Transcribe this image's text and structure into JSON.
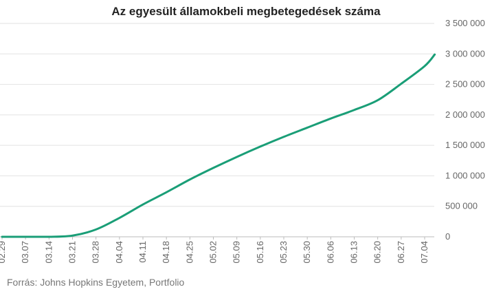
{
  "chart_data": {
    "type": "line",
    "title": "Az egyesült államokbeli megbetegedések száma",
    "source": "Forrás: Johns Hopkins Egyetem, Portfolio",
    "xlabel": "",
    "ylabel": "",
    "ylim": [
      0,
      3500000
    ],
    "grid": true,
    "y_axis_position": "right",
    "y_ticks": [
      0,
      500000,
      1000000,
      1500000,
      2000000,
      2500000,
      3000000,
      3500000
    ],
    "y_tick_labels": [
      "0",
      "500 000",
      "1 000 000",
      "1 500 000",
      "2 000 000",
      "2 500 000",
      "3 000 000",
      "3 500 000"
    ],
    "x_tick_labels": [
      "02.29",
      "03.07",
      "03.14",
      "03.21",
      "03.28",
      "04.04",
      "04.11",
      "04.18",
      "04.25",
      "05.02",
      "05.09",
      "05.16",
      "05.23",
      "05.30",
      "06.06",
      "06.13",
      "06.20",
      "06.27",
      "07.04"
    ],
    "line_color": "#1a9e77",
    "series": [
      {
        "x": [
          "02.29",
          "03.07",
          "03.14",
          "03.21",
          "03.28",
          "04.04",
          "04.11",
          "04.18",
          "04.25",
          "05.02",
          "05.09",
          "05.16",
          "05.23",
          "05.30",
          "06.06",
          "06.13",
          "06.20",
          "06.27",
          "07.04",
          "07.07"
        ],
        "values": [
          0,
          0,
          0,
          20000,
          120000,
          310000,
          530000,
          730000,
          940000,
          1130000,
          1310000,
          1480000,
          1640000,
          1790000,
          1940000,
          2080000,
          2240000,
          2510000,
          2800000,
          2990000
        ]
      }
    ]
  }
}
